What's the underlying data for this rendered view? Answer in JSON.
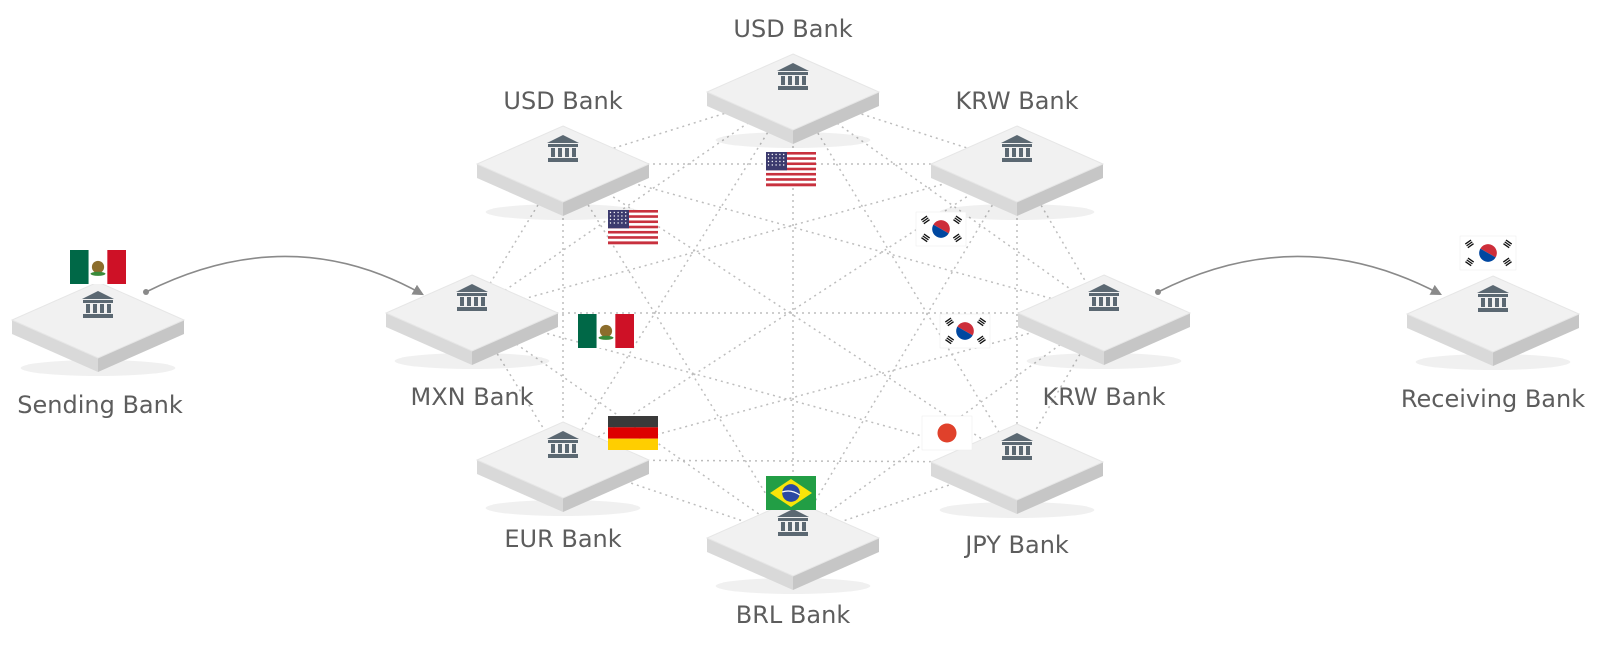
{
  "banks": {
    "sending": "Sending Bank",
    "receiving": "Receiving Bank",
    "top": "USD Bank",
    "upper_left": "USD Bank",
    "upper_right": "KRW Bank",
    "left": "MXN Bank",
    "right": "KRW Bank",
    "lower_left": "EUR Bank",
    "lower_right": "JPY Bank",
    "bottom": "BRL Bank"
  },
  "icons": {
    "bank": "bank-icon",
    "flags": [
      "usa-flag-icon",
      "mexico-flag-icon",
      "germany-flag-icon",
      "brazil-flag-icon",
      "south-korea-flag-icon",
      "japan-flag-icon"
    ]
  },
  "colors": {
    "platform_top": "#f1f1f1",
    "platform_side": "#d8d8d8",
    "bank_icon": "#5b6872",
    "network_line": "#bdbdbd",
    "arrow": "#8a8a8a",
    "label": "#5d5d5d"
  }
}
